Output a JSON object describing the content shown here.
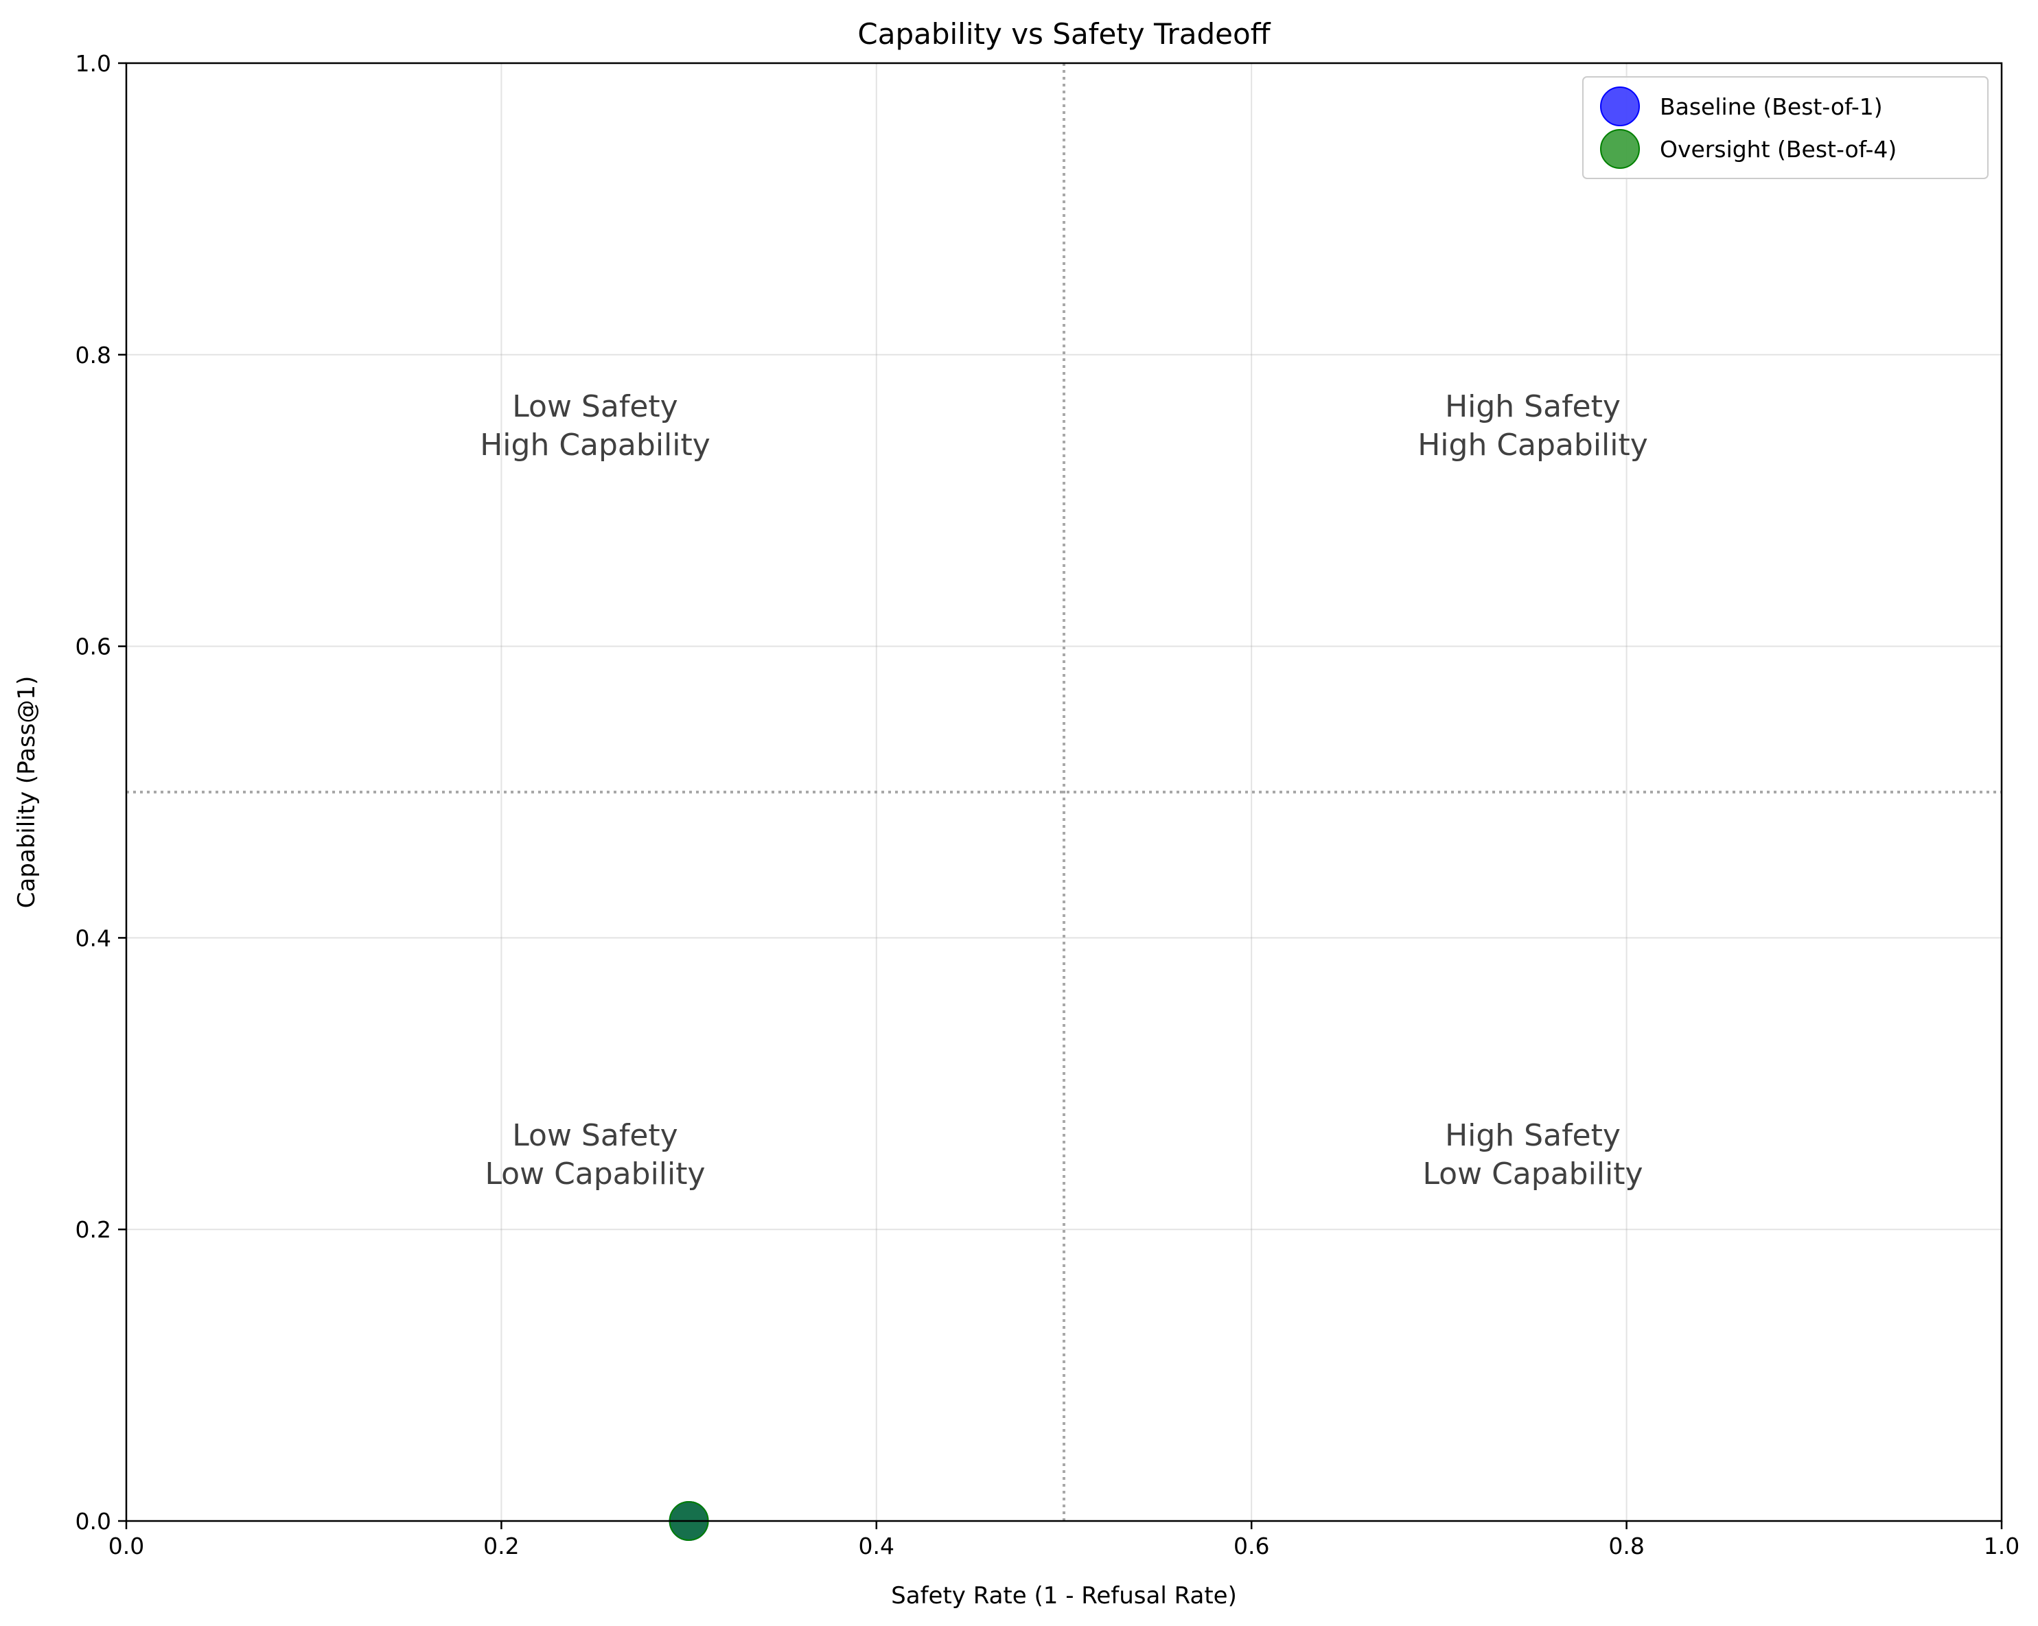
{
  "chart_data": {
    "type": "scatter",
    "title": "Capability vs Safety Tradeoff",
    "xlabel": "Safety Rate (1 - Refusal Rate)",
    "ylabel": "Capability (Pass@1)",
    "xlim": [
      0.0,
      1.0
    ],
    "ylim": [
      0.0,
      1.0
    ],
    "xticks": [
      "0.0",
      "0.2",
      "0.4",
      "0.6",
      "0.8",
      "1.0"
    ],
    "yticks": [
      "0.0",
      "0.2",
      "0.4",
      "0.6",
      "0.8",
      "1.0"
    ],
    "grid": true,
    "legend_position": "top-right",
    "reference_lines": {
      "x": 0.5,
      "y": 0.5,
      "style": "dotted"
    },
    "quadrant_labels": [
      {
        "line1": "Low Safety",
        "line2": "High Capability",
        "x": 0.25,
        "y": 0.75
      },
      {
        "line1": "High Safety",
        "line2": "High Capability",
        "x": 0.75,
        "y": 0.75
      },
      {
        "line1": "Low Safety",
        "line2": "Low Capability",
        "x": 0.25,
        "y": 0.25
      },
      {
        "line1": "High Safety",
        "line2": "Low Capability",
        "x": 0.75,
        "y": 0.25
      }
    ],
    "series": [
      {
        "name": "Baseline (Best-of-1)",
        "color": "#0000ff",
        "points": [
          {
            "x": 0.3,
            "y": 0.0
          }
        ]
      },
      {
        "name": "Oversight (Best-of-4)",
        "color": "#008000",
        "points": [
          {
            "x": 0.3,
            "y": 0.0
          }
        ]
      }
    ]
  }
}
